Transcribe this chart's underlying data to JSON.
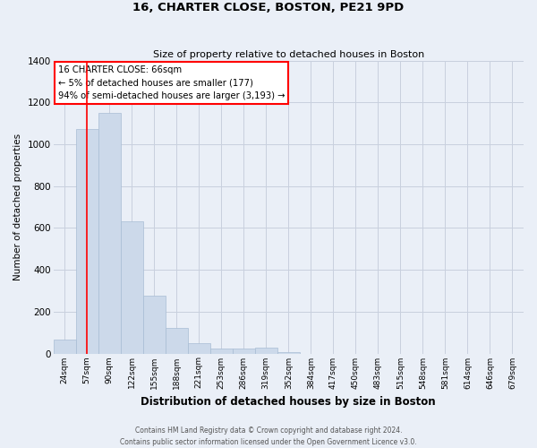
{
  "title1": "16, CHARTER CLOSE, BOSTON, PE21 9PD",
  "title2": "Size of property relative to detached houses in Boston",
  "xlabel": "Distribution of detached houses by size in Boston",
  "ylabel": "Number of detached properties",
  "categories": [
    "24sqm",
    "57sqm",
    "90sqm",
    "122sqm",
    "155sqm",
    "188sqm",
    "221sqm",
    "253sqm",
    "286sqm",
    "319sqm",
    "352sqm",
    "384sqm",
    "417sqm",
    "450sqm",
    "483sqm",
    "515sqm",
    "548sqm",
    "581sqm",
    "614sqm",
    "646sqm",
    "679sqm"
  ],
  "values": [
    65,
    1075,
    1150,
    630,
    275,
    120,
    50,
    25,
    25,
    30,
    5,
    0,
    0,
    0,
    0,
    0,
    0,
    0,
    0,
    0,
    0
  ],
  "bar_color": "#ccd9ea",
  "bar_edge_color": "#a8bdd4",
  "grid_color": "#c8d0de",
  "background_color": "#eaeff7",
  "fig_background_color": "#eaeff7",
  "red_line_x": 1.0,
  "annotation_text_line1": "16 CHARTER CLOSE: 66sqm",
  "annotation_text_line2": "← 5% of detached houses are smaller (177)",
  "annotation_text_line3": "94% of semi-detached houses are larger (3,193) →",
  "ylim": [
    0,
    1400
  ],
  "yticks": [
    0,
    200,
    400,
    600,
    800,
    1000,
    1200,
    1400
  ],
  "footer1": "Contains HM Land Registry data © Crown copyright and database right 2024.",
  "footer2": "Contains public sector information licensed under the Open Government Licence v3.0."
}
